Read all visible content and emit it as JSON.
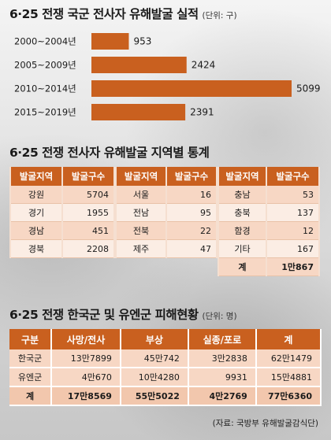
{
  "chart_data": {
    "type": "bar",
    "orientation": "horizontal",
    "title": "6·25 전쟁 국군 전사자 유해발굴 실적",
    "unit": "(단위: 구)",
    "categories": [
      "2000~2004년",
      "2005~2009년",
      "2010~2014년",
      "2015~2019년"
    ],
    "values": [
      953,
      2424,
      5099,
      2391
    ],
    "xlim": [
      0,
      5099
    ],
    "grid": false,
    "legend": "none",
    "bar_color": "#c9601f"
  },
  "regional": {
    "title": "6·25 전쟁 전사자 유해발굴 지역별 통계",
    "col_region": "발굴지역",
    "col_count": "발굴구수",
    "groups": [
      [
        [
          "강원",
          "5704"
        ],
        [
          "경기",
          "1955"
        ],
        [
          "경남",
          "451"
        ],
        [
          "경북",
          "2208"
        ]
      ],
      [
        [
          "서울",
          "16"
        ],
        [
          "전남",
          "95"
        ],
        [
          "전북",
          "22"
        ],
        [
          "제주",
          "47"
        ]
      ],
      [
        [
          "충남",
          "53"
        ],
        [
          "충북",
          "137"
        ],
        [
          "함경",
          "12"
        ],
        [
          "기타",
          "167"
        ]
      ]
    ],
    "total_label": "계",
    "total_value": "1만867"
  },
  "casualties": {
    "title": "6·25 전쟁 한국군 및 유엔군 피해현황",
    "unit": "(단위: 명)",
    "headers": [
      "구분",
      "사망/전사",
      "부상",
      "실종/포로",
      "계"
    ],
    "rows": [
      [
        "한국군",
        "13만7899",
        "45만742",
        "3만2838",
        "62만1479"
      ],
      [
        "유엔군",
        "4만670",
        "10만4280",
        "9931",
        "15만4881"
      ],
      [
        "계",
        "17만8569",
        "55만5022",
        "4만2769",
        "77만6360"
      ]
    ]
  },
  "source": "(자료: 국방부 유해발굴감식단)"
}
